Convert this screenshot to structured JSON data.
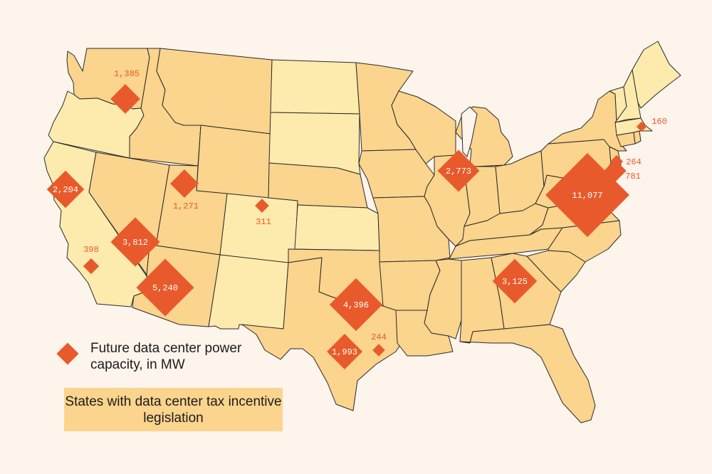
{
  "colors": {
    "background": "#fdf4ec",
    "incentive_state": "#fbd48d",
    "other_state": "#fdebad",
    "marker": "#e85a2b",
    "border": "#2a2a2a"
  },
  "legend": {
    "marker_label": "Future data center power capacity, in MW",
    "fill_label": "States with data center tax incentive legislation"
  },
  "states_with_incentive": [
    "WA",
    "ID",
    "MT",
    "WY",
    "NV",
    "UT",
    "AZ",
    "TX",
    "OK",
    "NE",
    "MO",
    "AR",
    "LA",
    "IA",
    "MN",
    "WI",
    "IL",
    "IN",
    "MI",
    "OH",
    "KY",
    "TN",
    "MS",
    "AL",
    "GA",
    "FL",
    "SC",
    "NC",
    "VA",
    "WV",
    "PA",
    "MD",
    "NJ",
    "DE",
    "NY",
    "CT",
    "RI"
  ],
  "states_without_incentive": [
    "OR",
    "CA",
    "CO",
    "NM",
    "ND",
    "SD",
    "KS",
    "ME",
    "NH",
    "VT",
    "MA"
  ],
  "markers": [
    {
      "state": "WA",
      "value": 1385,
      "label": "1,385"
    },
    {
      "state": "CA",
      "value": 2204,
      "label": "2,204"
    },
    {
      "state": "UT",
      "value": 1271,
      "label": "1,271"
    },
    {
      "state": "CO",
      "value": 311,
      "label": "311"
    },
    {
      "state": "NV",
      "value": 3812,
      "label": "3,812"
    },
    {
      "state": "CA-South",
      "value": 398,
      "label": "398"
    },
    {
      "state": "AZ",
      "value": 5240,
      "label": "5,240"
    },
    {
      "state": "TX-North",
      "value": 4396,
      "label": "4,396"
    },
    {
      "state": "TX-Central",
      "value": 1993,
      "label": "1,993"
    },
    {
      "state": "TX-Houston",
      "value": 244,
      "label": "244"
    },
    {
      "state": "IL",
      "value": 2773,
      "label": "2,773"
    },
    {
      "state": "GA",
      "value": 3125,
      "label": "3,125"
    },
    {
      "state": "VA",
      "value": 11077,
      "label": "11,077"
    },
    {
      "state": "NJ",
      "value": 781,
      "label": "781"
    },
    {
      "state": "NJ-North",
      "value": 264,
      "label": "264"
    },
    {
      "state": "MA",
      "value": 160,
      "label": "160"
    }
  ]
}
